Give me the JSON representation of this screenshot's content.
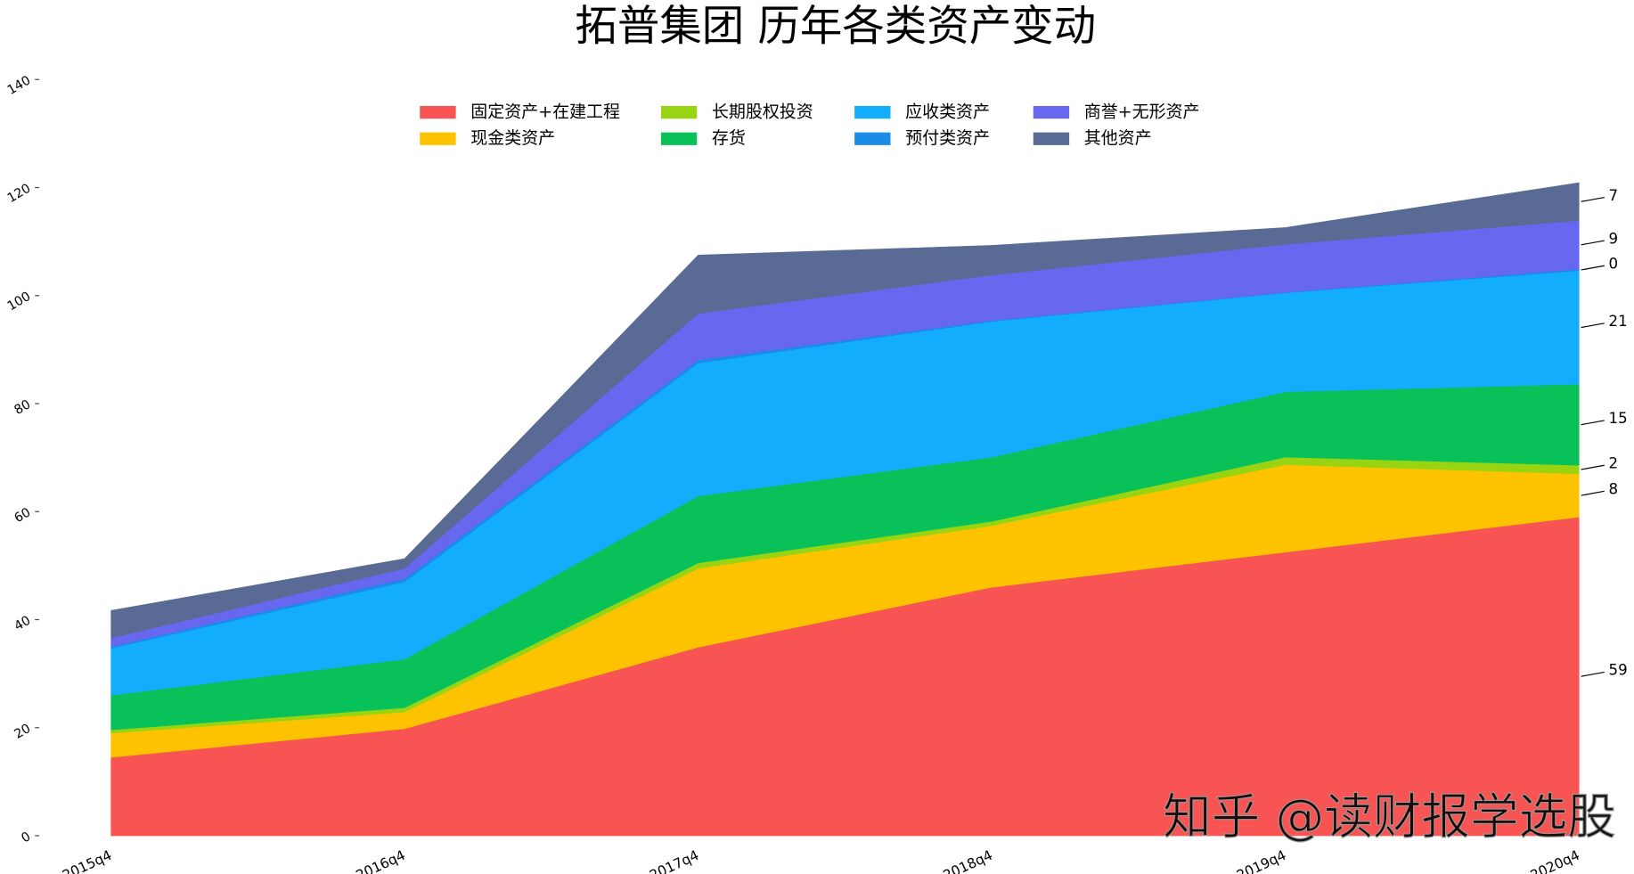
{
  "chart_data": {
    "type": "stacked_area",
    "title": "拓普集团 历年各类资产变动",
    "watermark": "知乎 @读财报学选股",
    "categories": [
      "2015q4",
      "2016q4",
      "2017q4",
      "2018q4",
      "2019q4",
      "2020q4"
    ],
    "series": [
      {
        "name": "固定资产+在建工程",
        "color": "#f95454",
        "values": [
          14.5,
          19.8,
          34.9,
          46.0,
          52.5,
          59
        ],
        "value_labels": [
          null,
          null,
          null,
          null,
          null,
          "59"
        ]
      },
      {
        "name": "现金类资产",
        "color": "#fdc300",
        "values": [
          4.5,
          3.1,
          14.6,
          11.4,
          16.2,
          8
        ],
        "value_labels": [
          null,
          null,
          null,
          null,
          null,
          "8"
        ]
      },
      {
        "name": "长期股权投资",
        "color": "#98d411",
        "values": [
          0.6,
          0.8,
          1.0,
          0.8,
          1.4,
          1.6
        ],
        "value_labels": [
          null,
          null,
          null,
          null,
          null,
          "2"
        ]
      },
      {
        "name": "存货",
        "color": "#08c159",
        "values": [
          6.4,
          9.0,
          12.4,
          11.9,
          12.1,
          15
        ],
        "value_labels": [
          null,
          null,
          null,
          null,
          null,
          "15"
        ]
      },
      {
        "name": "应收类资产",
        "color": "#12aefd",
        "values": [
          8.7,
          14.3,
          24.6,
          25.1,
          18.3,
          21
        ],
        "value_labels": [
          null,
          null,
          null,
          null,
          null,
          "21"
        ]
      },
      {
        "name": "预付类资产",
        "color": "#1b8be8",
        "values": [
          0.3,
          0.6,
          0.6,
          0.2,
          0.1,
          0.3
        ],
        "value_labels": [
          null,
          null,
          null,
          null,
          null,
          "0"
        ]
      },
      {
        "name": "商誉+无形资产",
        "color": "#6767f0",
        "values": [
          1.6,
          1.9,
          8.6,
          8.4,
          8.9,
          9
        ],
        "value_labels": [
          null,
          null,
          null,
          null,
          null,
          "9"
        ]
      },
      {
        "name": "其他资产",
        "color": "#596a94",
        "values": [
          5.1,
          1.8,
          10.8,
          5.5,
          3.1,
          7
        ],
        "value_labels": [
          null,
          null,
          null,
          null,
          null,
          "7"
        ]
      }
    ],
    "ylim": [
      0,
      140
    ],
    "yticks": [
      0,
      20,
      40,
      60,
      80,
      100,
      120,
      140
    ],
    "grid": false
  }
}
